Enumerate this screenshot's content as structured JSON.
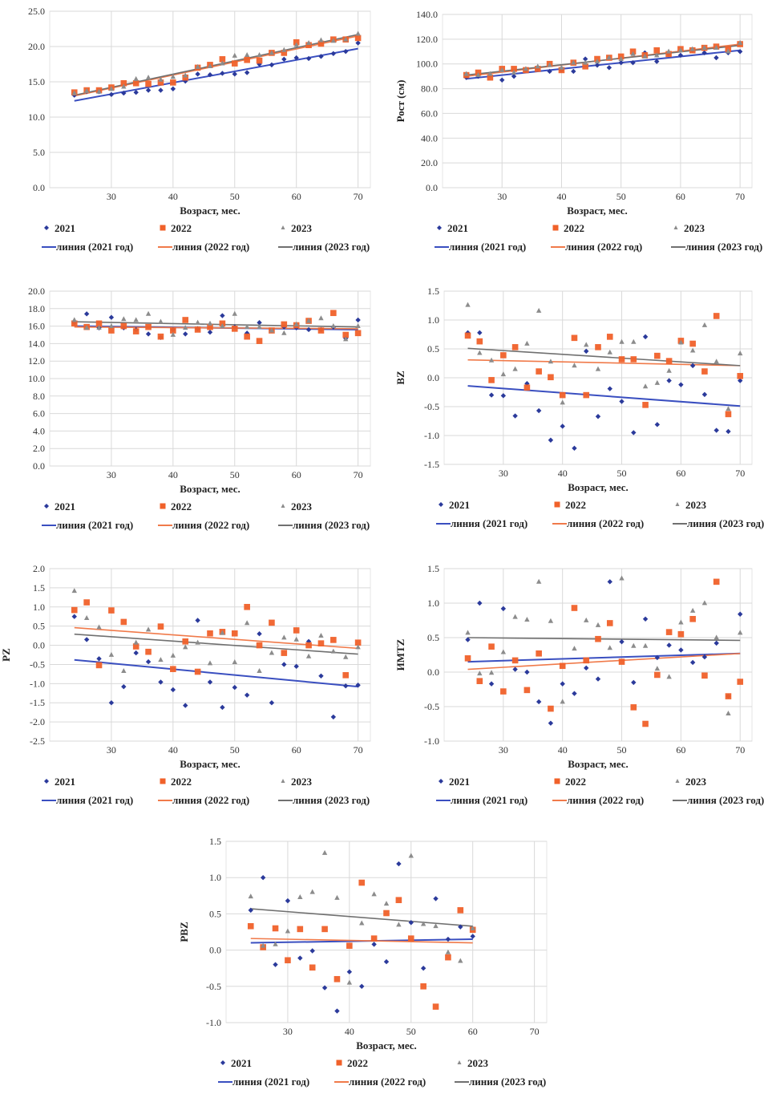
{
  "colors": {
    "s2021": "#2b3a9b",
    "s2022": "#f0612a",
    "s2023": "#8c8c8c",
    "line2021": "#3a4fc0",
    "line2022": "#f07a4a",
    "line2023": "#707070"
  },
  "legend": {
    "series": [
      "2021",
      "2022",
      "2023"
    ],
    "lines": [
      "линия (2021 год)",
      "линия (2022 год)",
      "линия (2023 год)"
    ]
  },
  "chart_data": [
    {
      "id": "weight",
      "type": "scatter",
      "title": "",
      "xlabel": "Возраст, мес.",
      "ylabel": "",
      "xlim": [
        20,
        72
      ],
      "ylim": [
        0,
        25
      ],
      "xticks": [
        30,
        40,
        50,
        60,
        70
      ],
      "yticks": [
        0,
        5,
        10,
        15,
        20,
        25
      ],
      "ytick_labels": [
        "0.0",
        "5.0",
        "10.0",
        "15.0",
        "20.0",
        "25.0"
      ],
      "grid": true,
      "legend": "bottom",
      "x": [
        24,
        26,
        28,
        30,
        32,
        34,
        36,
        38,
        40,
        42,
        44,
        46,
        48,
        50,
        52,
        54,
        56,
        58,
        60,
        62,
        64,
        66,
        68,
        70
      ],
      "series": [
        {
          "name": "2021",
          "values": [
            13.1,
            13.6,
            13.6,
            13.2,
            13.4,
            13.5,
            13.8,
            13.8,
            14.0,
            15.1,
            16.1,
            16.0,
            16.2,
            16.1,
            16.3,
            17.5,
            17.4,
            18.2,
            18.4,
            18.3,
            18.6,
            19.0,
            19.3,
            20.5
          ],
          "trend": [
            12.3,
            19.7
          ]
        },
        {
          "name": "2022",
          "values": [
            13.5,
            13.8,
            13.8,
            14.2,
            14.8,
            14.8,
            14.7,
            14.9,
            14.9,
            15.6,
            17.0,
            17.4,
            18.2,
            17.6,
            18.1,
            18.0,
            19.1,
            19.1,
            20.6,
            20.2,
            20.4,
            21.0,
            21.0,
            21.2
          ],
          "trend": [
            13.0,
            21.5
          ]
        },
        {
          "name": "2023",
          "values": [
            13.4,
            13.7,
            13.6,
            14.0,
            14.3,
            15.4,
            15.6,
            15.3,
            15.7,
            15.9,
            17.1,
            17.2,
            17.6,
            18.7,
            18.8,
            18.8,
            19.1,
            19.5,
            20.2,
            20.5,
            20.9,
            20.8,
            21.0,
            21.8
          ],
          "trend": [
            13.1,
            21.7
          ]
        }
      ]
    },
    {
      "id": "height",
      "type": "scatter",
      "title": "",
      "xlabel": "Возраст, мес.",
      "ylabel": "Рост (см)",
      "xlim": [
        20,
        72
      ],
      "ylim": [
        0,
        140
      ],
      "xticks": [
        30,
        40,
        50,
        60,
        70
      ],
      "yticks": [
        0,
        20,
        40,
        60,
        80,
        100,
        120,
        140
      ],
      "ytick_labels": [
        "0.0",
        "20.0",
        "40.0",
        "60.0",
        "80.0",
        "100.0",
        "120.0",
        "140.0"
      ],
      "grid": true,
      "legend": "bottom",
      "x": [
        24,
        26,
        28,
        30,
        32,
        34,
        36,
        38,
        40,
        42,
        44,
        46,
        48,
        50,
        52,
        54,
        56,
        58,
        60,
        62,
        64,
        66,
        68,
        70
      ],
      "series": [
        {
          "name": "2021",
          "values": [
            89,
            90,
            91,
            87,
            90,
            95,
            96,
            94,
            95,
            94,
            104,
            99,
            97,
            101,
            101,
            109,
            102,
            108,
            107,
            111,
            109,
            105,
            109,
            110
          ],
          "trend": [
            88,
            111
          ]
        },
        {
          "name": "2022",
          "values": [
            91,
            93,
            89,
            96,
            96,
            95,
            96,
            100,
            95,
            101,
            98,
            104,
            105,
            106,
            110,
            107,
            111,
            108,
            112,
            111,
            113,
            114,
            112,
            116
          ],
          "trend": [
            90,
            116
          ]
        },
        {
          "name": "2023",
          "values": [
            92,
            91,
            92,
            95,
            93,
            96,
            98,
            99,
            97,
            101,
            101,
            102,
            105,
            104,
            108,
            106,
            107,
            110,
            111,
            112,
            113,
            113,
            110,
            117
          ],
          "trend": [
            91,
            115
          ]
        }
      ]
    },
    {
      "id": "bmi",
      "type": "scatter",
      "title": "",
      "xlabel": "Возраст, мес.",
      "ylabel": "",
      "xlim": [
        20,
        72
      ],
      "ylim": [
        0,
        20
      ],
      "xticks": [
        30,
        40,
        50,
        60,
        70
      ],
      "yticks": [
        0,
        2,
        4,
        6,
        8,
        10,
        12,
        14,
        16,
        18,
        20
      ],
      "ytick_labels": [
        "0.0",
        "2.0",
        "4.0",
        "6.0",
        "8.0",
        "10.0",
        "12.0",
        "14.0",
        "16.0",
        "18.0",
        "20.0"
      ],
      "grid": true,
      "legend": "bottom",
      "x": [
        24,
        26,
        28,
        30,
        32,
        34,
        36,
        38,
        40,
        42,
        44,
        46,
        48,
        50,
        52,
        54,
        56,
        58,
        60,
        62,
        64,
        66,
        68,
        70
      ],
      "series": [
        {
          "name": "2021",
          "values": [
            16.4,
            17.4,
            15.8,
            17.0,
            15.8,
            15.6,
            15.1,
            14.7,
            15.6,
            15.1,
            15.7,
            15.3,
            17.2,
            15.9,
            15.2,
            16.4,
            15.5,
            15.9,
            15.8,
            15.6,
            15.6,
            15.9,
            14.6,
            16.7
          ],
          "trend": [
            16.0,
            15.6
          ]
        },
        {
          "name": "2022",
          "values": [
            16.3,
            15.9,
            16.3,
            15.5,
            16.0,
            15.4,
            15.9,
            14.8,
            15.5,
            16.7,
            15.6,
            15.9,
            16.3,
            15.7,
            14.8,
            14.3,
            15.5,
            16.2,
            16.1,
            16.6,
            15.5,
            17.5,
            15.0,
            15.2
          ],
          "trend": [
            15.9,
            15.7
          ]
        },
        {
          "name": "2023",
          "values": [
            16.7,
            15.8,
            15.8,
            16.0,
            16.8,
            16.7,
            17.4,
            16.5,
            15.0,
            15.8,
            16.4,
            16.3,
            16.0,
            17.4,
            15.9,
            15.9,
            15.5,
            15.2,
            16.2,
            16.6,
            16.9,
            16.0,
            14.5,
            16.0
          ],
          "trend": [
            16.5,
            15.9
          ]
        }
      ]
    },
    {
      "id": "bz",
      "type": "scatter",
      "title": "",
      "xlabel": "Возраст, мес.",
      "ylabel": "BZ",
      "xlim": [
        20,
        72
      ],
      "ylim": [
        -1.5,
        1.5
      ],
      "xticks": [
        30,
        40,
        50,
        60,
        70
      ],
      "yticks": [
        -1.5,
        -1.0,
        -0.5,
        0.0,
        0.5,
        1.0,
        1.5
      ],
      "ytick_labels": [
        "-1.5",
        "-1.0",
        "-0.5",
        "0.0",
        "0.5",
        "1.0",
        "1.5"
      ],
      "grid": true,
      "legend": "bottom",
      "x": [
        24,
        26,
        28,
        30,
        32,
        34,
        36,
        38,
        40,
        42,
        44,
        46,
        48,
        50,
        52,
        54,
        56,
        58,
        60,
        62,
        64,
        66,
        68,
        70
      ],
      "series": [
        {
          "name": "2021",
          "values": [
            0.78,
            0.78,
            -0.3,
            -0.31,
            -0.66,
            -0.1,
            -0.57,
            -1.08,
            -0.84,
            -1.22,
            0.46,
            -0.67,
            -0.19,
            -0.41,
            -0.95,
            0.71,
            -0.81,
            -0.05,
            -0.12,
            0.21,
            -0.29,
            -0.91,
            -0.93,
            -0.05
          ],
          "trend": [
            -0.14,
            -0.49
          ]
        },
        {
          "name": "2022",
          "values": [
            0.73,
            0.63,
            -0.04,
            0.39,
            0.53,
            -0.17,
            0.11,
            0.01,
            -0.3,
            0.69,
            -0.3,
            0.53,
            0.71,
            0.32,
            0.32,
            -0.47,
            0.38,
            0.29,
            0.64,
            0.59,
            0.11,
            1.07,
            -0.63,
            0.03
          ],
          "trend": [
            0.31,
            0.21
          ]
        },
        {
          "name": "2023",
          "values": [
            1.26,
            0.43,
            0.3,
            0.06,
            0.15,
            0.59,
            1.16,
            0.28,
            -0.43,
            0.21,
            0.57,
            0.15,
            0.44,
            0.62,
            0.62,
            -0.15,
            -0.09,
            0.12,
            0.61,
            0.47,
            0.91,
            0.28,
            -0.54,
            0.42
          ],
          "trend": [
            0.51,
            0.21
          ]
        }
      ]
    },
    {
      "id": "pz",
      "type": "scatter",
      "title": "",
      "xlabel": "Возраст, мес.",
      "ylabel": "PZ",
      "xlim": [
        20,
        72
      ],
      "ylim": [
        -2.5,
        2.0
      ],
      "xticks": [
        30,
        40,
        50,
        60,
        70
      ],
      "yticks": [
        -2.5,
        -2.0,
        -1.5,
        -1.0,
        -0.5,
        0.0,
        0.5,
        1.0,
        1.5,
        2.0
      ],
      "ytick_labels": [
        "-2.5",
        "-2.0",
        "-1.5",
        "-1.0",
        "-0.5",
        "0.0",
        "0.5",
        "1.0",
        "1.5",
        "2.0"
      ],
      "grid": true,
      "legend": "bottom",
      "x": [
        24,
        26,
        28,
        30,
        32,
        34,
        36,
        38,
        40,
        42,
        44,
        46,
        48,
        50,
        52,
        54,
        56,
        58,
        60,
        62,
        64,
        66,
        68,
        70
      ],
      "series": [
        {
          "name": "2021",
          "values": [
            0.75,
            0.15,
            -0.35,
            -1.5,
            -1.08,
            -0.2,
            -0.43,
            -0.96,
            -1.16,
            -1.57,
            0.65,
            -0.96,
            -1.62,
            -1.1,
            -1.3,
            0.3,
            -1.5,
            -0.5,
            -0.55,
            0.1,
            -0.8,
            -1.87,
            -1.06,
            -1.04
          ],
          "trend": [
            -0.38,
            -1.08
          ]
        },
        {
          "name": "2022",
          "values": [
            0.92,
            1.12,
            -0.52,
            0.91,
            0.61,
            -0.03,
            -0.17,
            0.49,
            -0.62,
            0.1,
            -0.69,
            0.31,
            0.35,
            0.31,
            1.0,
            0.0,
            0.59,
            -0.2,
            0.39,
            0.0,
            0.05,
            0.14,
            -0.78,
            0.07
          ],
          "trend": [
            0.46,
            -0.08
          ]
        },
        {
          "name": "2023",
          "values": [
            1.42,
            0.71,
            0.47,
            -0.25,
            -0.67,
            0.07,
            0.41,
            -0.38,
            -0.27,
            -0.05,
            0.07,
            -0.47,
            0.32,
            -0.44,
            0.58,
            -0.67,
            -0.2,
            0.2,
            0.15,
            -0.29,
            0.25,
            -0.16,
            -0.31,
            -0.05
          ],
          "trend": [
            0.29,
            -0.23
          ]
        }
      ]
    },
    {
      "id": "imtz",
      "type": "scatter",
      "title": "",
      "xlabel": "Возраст, мес.",
      "ylabel": "ИМТZ",
      "xlim": [
        20,
        72
      ],
      "ylim": [
        -1.0,
        1.5
      ],
      "xticks": [
        30,
        40,
        50,
        60,
        70
      ],
      "yticks": [
        -1.0,
        -0.5,
        0.0,
        0.5,
        1.0,
        1.5
      ],
      "ytick_labels": [
        "-1.0",
        "-0.5",
        "0.0",
        "0.5",
        "1.0",
        "1.5"
      ],
      "grid": true,
      "legend": "bottom",
      "x": [
        24,
        26,
        28,
        30,
        32,
        34,
        36,
        38,
        40,
        42,
        44,
        46,
        48,
        50,
        52,
        54,
        56,
        58,
        60,
        62,
        64,
        66,
        68,
        70
      ],
      "series": [
        {
          "name": "2021",
          "values": [
            0.47,
            1.0,
            -0.17,
            0.92,
            0.04,
            0.0,
            -0.43,
            -0.74,
            -0.17,
            -0.31,
            0.06,
            -0.1,
            1.31,
            0.44,
            -0.15,
            0.77,
            0.21,
            0.39,
            0.32,
            0.14,
            0.22,
            0.42,
            -0.35,
            0.84
          ],
          "trend": [
            0.15,
            0.27
          ]
        },
        {
          "name": "2022",
          "values": [
            0.2,
            -0.13,
            0.37,
            -0.28,
            0.17,
            -0.26,
            0.27,
            -0.53,
            0.09,
            0.93,
            0.17,
            0.48,
            0.71,
            0.15,
            -0.51,
            -0.75,
            -0.04,
            0.58,
            0.55,
            0.77,
            -0.05,
            1.31,
            -0.35,
            -0.14
          ],
          "trend": [
            0.04,
            0.27
          ]
        },
        {
          "name": "2023",
          "values": [
            0.57,
            -0.02,
            -0.01,
            0.29,
            0.8,
            0.76,
            1.31,
            0.74,
            -0.43,
            0.34,
            0.75,
            0.68,
            0.35,
            1.36,
            0.38,
            0.38,
            0.05,
            -0.07,
            0.72,
            0.89,
            1.0,
            0.5,
            -0.6,
            0.57
          ],
          "trend": [
            0.5,
            0.46
          ]
        }
      ]
    },
    {
      "id": "pbz",
      "type": "scatter",
      "title": "",
      "xlabel": "Возраст, мес.",
      "ylabel": "PBZ",
      "xlim": [
        20,
        72
      ],
      "ylim": [
        -1.0,
        1.5
      ],
      "xticks": [
        30,
        40,
        50,
        60,
        70
      ],
      "yticks": [
        -1.0,
        -0.5,
        0.0,
        0.5,
        1.0,
        1.5
      ],
      "ytick_labels": [
        "-1.0",
        "-0.5",
        "0.0",
        "0.5",
        "1.0",
        "1.5"
      ],
      "grid": true,
      "legend": "bottom",
      "x": [
        24,
        26,
        28,
        30,
        32,
        34,
        36,
        38,
        40,
        42,
        44,
        46,
        48,
        50,
        52,
        54,
        56,
        58,
        60
      ],
      "series": [
        {
          "name": "2021",
          "values": [
            0.55,
            1.0,
            -0.2,
            0.68,
            -0.11,
            -0.01,
            -0.52,
            -0.84,
            -0.3,
            -0.5,
            0.08,
            -0.16,
            1.19,
            0.38,
            -0.25,
            0.71,
            0.15,
            0.32,
            0.19
          ],
          "trend": [
            0.1,
            0.15
          ]
        },
        {
          "name": "2022",
          "values": [
            0.33,
            0.04,
            0.3,
            -0.14,
            0.29,
            -0.24,
            0.29,
            -0.4,
            0.06,
            0.93,
            0.16,
            0.51,
            0.69,
            0.16,
            -0.5,
            -0.78,
            -0.1,
            0.55,
            0.28
          ],
          "trend": [
            0.16,
            0.1
          ]
        },
        {
          "name": "2023",
          "values": [
            0.74,
            0.06,
            0.08,
            0.26,
            0.73,
            0.8,
            1.34,
            0.72,
            -0.45,
            0.37,
            0.77,
            0.64,
            0.35,
            1.3,
            0.36,
            0.33,
            -0.03,
            -0.15,
            0.3
          ],
          "trend": [
            0.57,
            0.33
          ]
        }
      ]
    }
  ]
}
